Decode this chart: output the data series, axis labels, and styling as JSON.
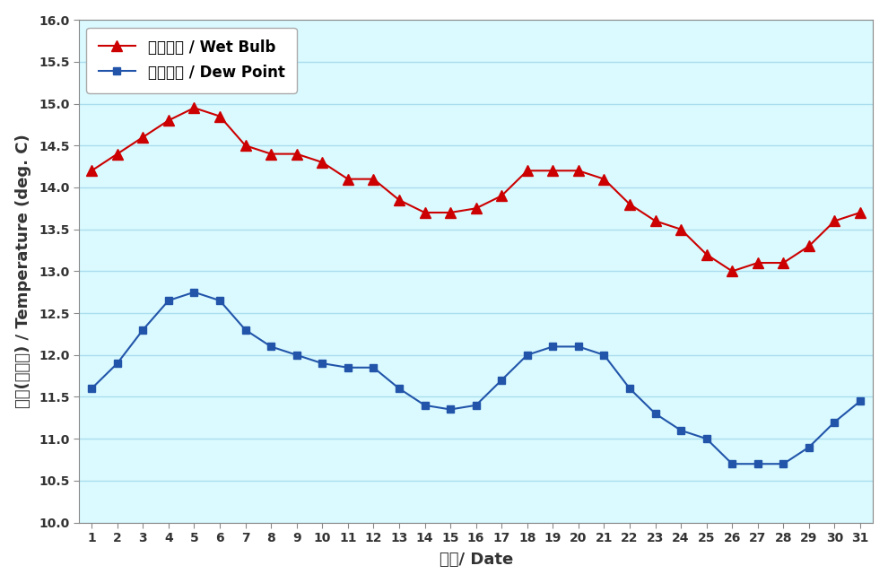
{
  "days": [
    1,
    2,
    3,
    4,
    5,
    6,
    7,
    8,
    9,
    10,
    11,
    12,
    13,
    14,
    15,
    16,
    17,
    18,
    19,
    20,
    21,
    22,
    23,
    24,
    25,
    26,
    27,
    28,
    29,
    30,
    31
  ],
  "wet_bulb": [
    14.2,
    14.4,
    14.6,
    14.8,
    14.95,
    14.85,
    14.5,
    14.4,
    14.4,
    14.3,
    14.1,
    14.1,
    13.85,
    13.7,
    13.7,
    13.75,
    13.9,
    14.2,
    14.2,
    14.2,
    14.1,
    13.8,
    13.6,
    13.5,
    13.2,
    13.0,
    13.1,
    13.1,
    13.3,
    13.6,
    13.7
  ],
  "dew_point": [
    11.6,
    11.9,
    12.3,
    12.65,
    12.75,
    12.65,
    12.3,
    12.1,
    12.0,
    11.9,
    11.85,
    11.85,
    11.6,
    11.4,
    11.35,
    11.4,
    11.7,
    12.0,
    12.1,
    12.1,
    12.0,
    11.6,
    11.3,
    11.1,
    11.0,
    10.7,
    10.7,
    10.7,
    10.9,
    11.2,
    11.45
  ],
  "wet_bulb_color": "#CC0000",
  "dew_point_color": "#2255AA",
  "bg_color": "#DAFAFF",
  "outer_bg": "#FFFFFF",
  "ylim_min": 10.0,
  "ylim_max": 16.0,
  "ytick_interval": 0.5,
  "xlabel": "日期/ Date",
  "ylabel": "溫度(攝氏度) / Temperature (deg. C)",
  "legend_wet_bulb": "濥球溫度 / Wet Bulb",
  "legend_dew_point": "露點溫度 / Dew Point",
  "grid_color": "#AADDEE",
  "spine_color": "#888888",
  "tick_label_fontsize": 10,
  "axis_label_fontsize": 13,
  "legend_fontsize": 12
}
